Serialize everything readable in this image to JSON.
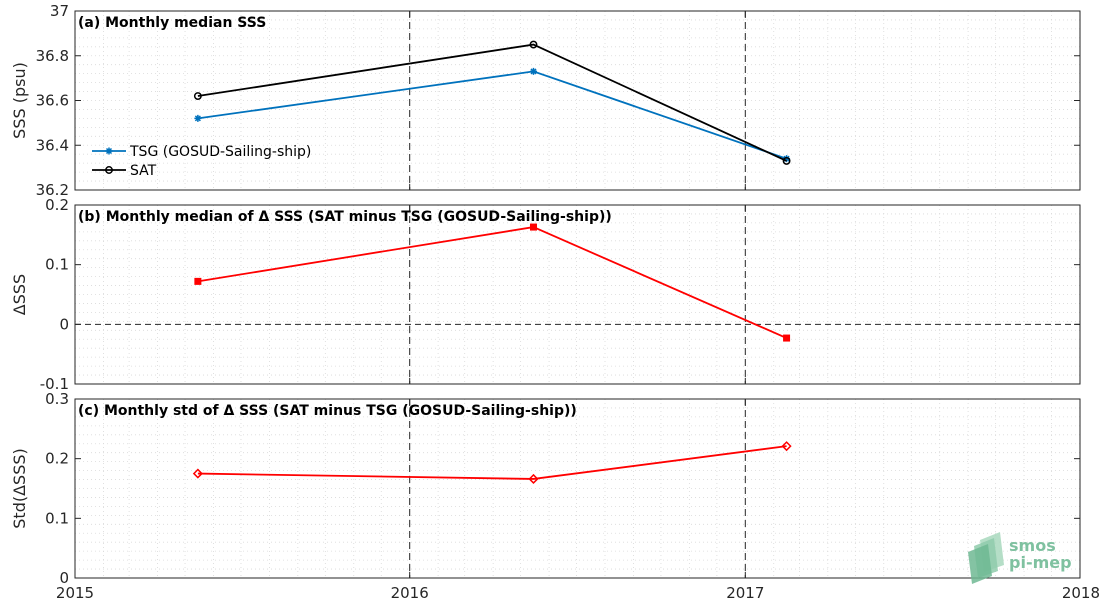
{
  "chart_data": [
    {
      "type": "line",
      "title": "(a) Monthly median SSS",
      "ylabel": "SSS (psu)",
      "xlim": [
        "2015-01-01",
        "2018-01-01"
      ],
      "ylim": [
        36.2,
        37
      ],
      "yticks": [
        36.2,
        36.4,
        36.6,
        36.8,
        37
      ],
      "ytick_labels": [
        "36.2",
        "36.4",
        "36.6",
        "36.8",
        "37"
      ],
      "grid": true,
      "legend": "middle-left",
      "series": [
        {
          "name": "TSG (GOSUD-Sailing-ship)",
          "color": "#0072bd",
          "marker": "star",
          "x": [
            "2015-05-15",
            "2016-05-15",
            "2017-02-15"
          ],
          "y": [
            36.52,
            36.73,
            36.34
          ]
        },
        {
          "name": "SAT",
          "color": "#000000",
          "marker": "circle",
          "x": [
            "2015-05-15",
            "2016-05-15",
            "2017-02-15"
          ],
          "y": [
            36.62,
            36.85,
            36.33
          ]
        }
      ]
    },
    {
      "type": "line",
      "title": "(b) Monthly median of Δ SSS (SAT minus TSG (GOSUD-Sailing-ship))",
      "ylabel": "ΔSSS",
      "xlim": [
        "2015-01-01",
        "2018-01-01"
      ],
      "ylim": [
        -0.1,
        0.2
      ],
      "yticks": [
        -0.1,
        0,
        0.1,
        0.2
      ],
      "ytick_labels": [
        "-0.1",
        "0",
        "0.1",
        "0.2"
      ],
      "grid": true,
      "zero_line": true,
      "series": [
        {
          "color": "#ff0000",
          "marker": "square",
          "x": [
            "2015-05-15",
            "2016-05-15",
            "2017-02-15"
          ],
          "y": [
            0.072,
            0.163,
            -0.023
          ]
        }
      ]
    },
    {
      "type": "line",
      "title": "(c) Monthly std of Δ SSS (SAT minus TSG (GOSUD-Sailing-ship))",
      "ylabel": "Std(ΔSSS)",
      "xlim": [
        "2015-01-01",
        "2018-01-01"
      ],
      "ylim": [
        0,
        0.3
      ],
      "yticks": [
        0,
        0.1,
        0.2,
        0.3
      ],
      "ytick_labels": [
        "0",
        "0.1",
        "0.2",
        "0.3"
      ],
      "grid": true,
      "series": [
        {
          "color": "#ff0000",
          "marker": "diamond",
          "x": [
            "2015-05-15",
            "2016-05-15",
            "2017-02-15"
          ],
          "y": [
            0.175,
            0.166,
            0.221
          ]
        }
      ]
    }
  ],
  "x_axis": {
    "tick_labels": [
      "2015",
      "2016",
      "2017",
      "2018"
    ],
    "tick_dates": [
      "2015-01-01",
      "2016-01-01",
      "2017-01-01",
      "2018-01-01"
    ],
    "year_lines": [
      "2016-01-01",
      "2017-01-01"
    ]
  },
  "logo": {
    "line1": "smos",
    "line2": "pi-mep",
    "color": "#7fc1a0"
  }
}
